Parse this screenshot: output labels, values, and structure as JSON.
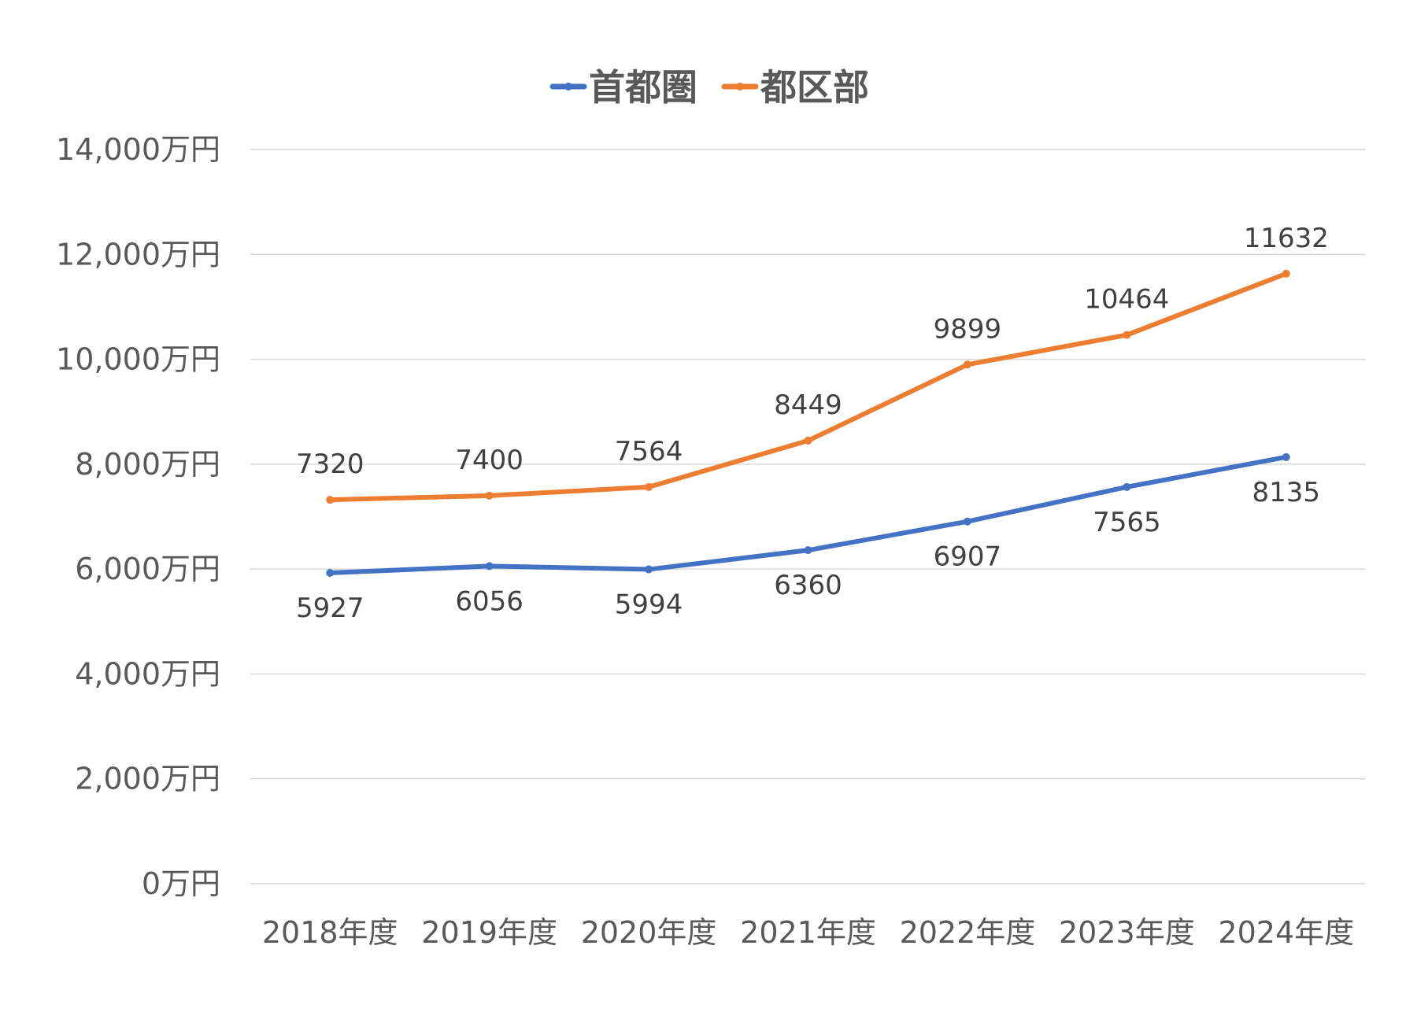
{
  "chart_data": {
    "type": "line",
    "title": "",
    "xlabel": "",
    "ylabel": "",
    "categories": [
      "2018年度",
      "2019年度",
      "2020年度",
      "2021年度",
      "2022年度",
      "2023年度",
      "2024年度"
    ],
    "ylim": [
      0,
      14000
    ],
    "y_ticks": [
      "0万円",
      "2,000万円",
      "4,000万円",
      "6,000万円",
      "8,000万円",
      "10,000万円",
      "12,000万円",
      "14,000万円"
    ],
    "grid": true,
    "legend_position": "top-center",
    "series": [
      {
        "name": "首都圏",
        "color": "#4472c4",
        "values": [
          5927,
          6056,
          5994,
          6360,
          6907,
          7565,
          8135
        ],
        "label_position": "below"
      },
      {
        "name": "都区部",
        "color": "#ed7d31",
        "values": [
          7320,
          7400,
          7564,
          8449,
          9899,
          10464,
          11632
        ],
        "label_position": "above"
      }
    ]
  }
}
